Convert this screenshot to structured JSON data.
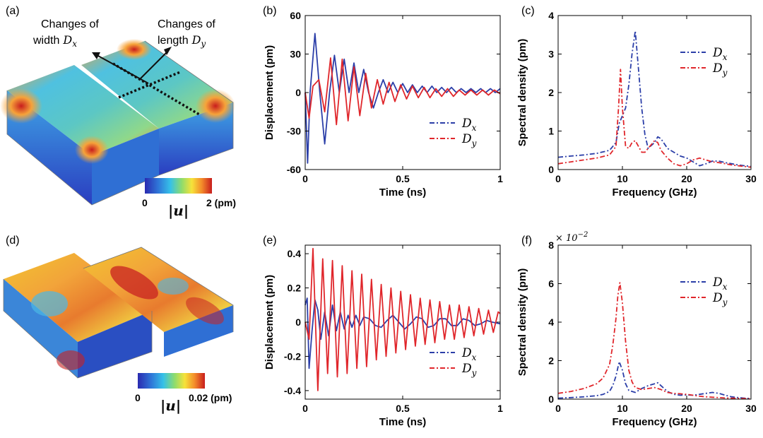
{
  "panel_labels": {
    "a": "(a)",
    "b": "(b)",
    "c": "(c)",
    "d": "(d)",
    "e": "(e)",
    "f": "(f)"
  },
  "annotations": {
    "width_line1": "Changes of",
    "width_line2": "width",
    "length_line1": "Changes of",
    "length_line2": "length",
    "dx_symbol": "D",
    "dx_sub": "x",
    "dy_symbol": "D",
    "dy_sub": "y"
  },
  "colorbar_a": {
    "min_label": "0",
    "max_label": "2 (pm)",
    "u_label": "|u|"
  },
  "colorbar_d": {
    "min_label": "0",
    "max_label": "0.02 (pm)",
    "u_label": "|u|"
  },
  "colors": {
    "dx": "#2b3ea8",
    "dy": "#e0262b"
  },
  "legend": {
    "dx_main": "D",
    "dx_sub": "x",
    "dy_main": "D",
    "dy_sub": "y"
  },
  "chart_data": [
    {
      "id": "b",
      "type": "line",
      "xlabel": "Time (ns)",
      "ylabel": "Displacement (pm)",
      "xlim": [
        0,
        1
      ],
      "ylim": [
        -60,
        60
      ],
      "xticks": [
        0,
        0.5,
        1
      ],
      "xticklabels": [
        "0",
        "0.5",
        "1"
      ],
      "yticks": [
        -60,
        -30,
        0,
        30,
        60
      ],
      "yticklabels": [
        "-60",
        "-30",
        "0",
        "30",
        "60"
      ],
      "legend_position": "lower-right",
      "series": [
        {
          "key": "dx",
          "x": [
            0,
            0.0125,
            0.025,
            0.05,
            0.075,
            0.1,
            0.125,
            0.15,
            0.175,
            0.2,
            0.225,
            0.25,
            0.275,
            0.3,
            0.325,
            0.35,
            0.375,
            0.4,
            0.425,
            0.45,
            0.475,
            0.5,
            0.525,
            0.55,
            0.575,
            0.6,
            0.625,
            0.65,
            0.675,
            0.7,
            0.725,
            0.75,
            0.775,
            0.8,
            0.825,
            0.85,
            0.875,
            0.9,
            0.925,
            0.95,
            0.975,
            1.0
          ],
          "y": [
            0,
            -55,
            0,
            46,
            0,
            -40,
            0,
            29,
            0,
            26,
            0,
            23,
            0,
            18,
            0,
            -12,
            0,
            10,
            0,
            8,
            0,
            7,
            0,
            6,
            0,
            5,
            0,
            5,
            0,
            4,
            0,
            4,
            0,
            3,
            0,
            3,
            0,
            3,
            0,
            3,
            0,
            3
          ]
        },
        {
          "key": "dy",
          "x": [
            0,
            0.02,
            0.04,
            0.07,
            0.1,
            0.13,
            0.16,
            0.19,
            0.22,
            0.25,
            0.28,
            0.31,
            0.34,
            0.37,
            0.4,
            0.43,
            0.46,
            0.49,
            0.52,
            0.55,
            0.58,
            0.61,
            0.64,
            0.67,
            0.7,
            0.73,
            0.76,
            0.79,
            0.82,
            0.85,
            0.88,
            0.91,
            0.94,
            0.97,
            1.0
          ],
          "y": [
            0,
            -20,
            5,
            10,
            -15,
            27,
            -25,
            26,
            -22,
            20,
            -18,
            15,
            -12,
            10,
            -9,
            8,
            -7,
            6,
            -5,
            5,
            -4,
            4,
            -4,
            3,
            -3,
            3,
            -3,
            2,
            -2,
            2,
            -2,
            2,
            -2,
            2,
            -1
          ]
        }
      ]
    },
    {
      "id": "c",
      "type": "line",
      "xlabel": "Frequency (GHz)",
      "ylabel": "Spectral density (pm)",
      "xlim": [
        0,
        30
      ],
      "ylim": [
        0,
        4
      ],
      "xticks": [
        0,
        10,
        20,
        30
      ],
      "xticklabels": [
        "0",
        "10",
        "20",
        "30"
      ],
      "yticks": [
        0,
        1,
        2,
        3,
        4
      ],
      "yticklabels": [
        "0",
        "1",
        "2",
        "3",
        "4"
      ],
      "legend_position": "upper-right",
      "series": [
        {
          "key": "dx",
          "x": [
            0,
            2,
            4,
            6,
            8,
            9,
            9.5,
            10,
            10.5,
            11,
            11.5,
            12,
            12.5,
            13,
            13.5,
            14,
            15,
            15.5,
            16,
            17,
            18,
            19,
            20,
            21,
            22,
            23,
            24,
            25,
            26,
            27,
            28,
            29,
            30
          ],
          "y": [
            0.32,
            0.35,
            0.38,
            0.42,
            0.5,
            0.7,
            1.2,
            1.4,
            1.6,
            2.2,
            3.0,
            3.6,
            2.6,
            1.6,
            0.9,
            0.55,
            0.7,
            0.85,
            0.8,
            0.55,
            0.45,
            0.35,
            0.3,
            0.2,
            0.1,
            0.15,
            0.22,
            0.22,
            0.18,
            0.15,
            0.12,
            0.1,
            0.08
          ]
        },
        {
          "key": "dy",
          "x": [
            0,
            2,
            4,
            6,
            8,
            9,
            9.4,
            9.7,
            10,
            10.5,
            11,
            11.5,
            12,
            12.5,
            13,
            13.5,
            14,
            14.5,
            15,
            15.5,
            16,
            17,
            18,
            19,
            20,
            21,
            22,
            23,
            24,
            25,
            26,
            27,
            28,
            29,
            30
          ],
          "y": [
            0.15,
            0.2,
            0.25,
            0.3,
            0.38,
            0.6,
            1.6,
            2.6,
            1.6,
            0.6,
            0.55,
            0.7,
            0.75,
            0.6,
            0.45,
            0.45,
            0.55,
            0.65,
            0.75,
            0.7,
            0.5,
            0.3,
            0.15,
            0.1,
            0.15,
            0.25,
            0.3,
            0.25,
            0.2,
            0.18,
            0.15,
            0.12,
            0.1,
            0.08,
            0.06
          ]
        }
      ]
    },
    {
      "id": "e",
      "type": "line",
      "xlabel": "Time (ns)",
      "ylabel": "Displacement (pm)",
      "xlim": [
        0,
        1
      ],
      "ylim": [
        -0.45,
        0.45
      ],
      "xticks": [
        0,
        0.5,
        1
      ],
      "xticklabels": [
        "0",
        "0.5",
        "1"
      ],
      "yticks": [
        -0.4,
        -0.2,
        0,
        0.2,
        0.4
      ],
      "yticklabels": [
        "-0.4",
        "-0.2",
        "0",
        "0.2",
        "0.4"
      ],
      "legend_position": "lower-right",
      "series": [
        {
          "key": "dx",
          "x": [
            0,
            0.01,
            0.02,
            0.035,
            0.05,
            0.065,
            0.08,
            0.1,
            0.12,
            0.14,
            0.16,
            0.18,
            0.2,
            0.22,
            0.24,
            0.26,
            0.28,
            0.3,
            0.33,
            0.36,
            0.39,
            0.42,
            0.45,
            0.48,
            0.51,
            0.54,
            0.57,
            0.6,
            0.63,
            0.66,
            0.69,
            0.72,
            0.75,
            0.78,
            0.81,
            0.84,
            0.87,
            0.9,
            0.93,
            0.96,
            1.0
          ],
          "y": [
            0.1,
            0.14,
            -0.27,
            -0.05,
            0.13,
            0.07,
            -0.1,
            0.06,
            -0.08,
            0.1,
            -0.05,
            0.06,
            -0.04,
            0.04,
            -0.03,
            0.04,
            -0.02,
            0.03,
            0.02,
            -0.02,
            -0.03,
            0.01,
            0.04,
            0.0,
            -0.04,
            -0.01,
            0.03,
            0.02,
            -0.03,
            -0.02,
            0.02,
            0.02,
            -0.02,
            -0.02,
            0.02,
            0.01,
            -0.02,
            -0.01,
            0.01,
            0.0,
            -0.01
          ]
        },
        {
          "key": "dy",
          "x": [
            0,
            0.02,
            0.04,
            0.065,
            0.09,
            0.115,
            0.14,
            0.165,
            0.19,
            0.215,
            0.24,
            0.265,
            0.29,
            0.315,
            0.34,
            0.365,
            0.39,
            0.415,
            0.44,
            0.465,
            0.49,
            0.515,
            0.54,
            0.565,
            0.59,
            0.615,
            0.64,
            0.665,
            0.69,
            0.715,
            0.74,
            0.765,
            0.79,
            0.815,
            0.84,
            0.865,
            0.89,
            0.915,
            0.94,
            0.965,
            0.99,
            1.0
          ],
          "y": [
            0.0,
            -0.1,
            0.43,
            -0.4,
            0.37,
            -0.3,
            0.36,
            -0.32,
            0.33,
            -0.3,
            0.3,
            -0.27,
            0.28,
            -0.26,
            0.25,
            -0.22,
            0.22,
            -0.2,
            0.2,
            -0.18,
            0.18,
            -0.16,
            0.16,
            -0.14,
            0.14,
            -0.13,
            0.13,
            -0.12,
            0.12,
            -0.1,
            0.1,
            -0.1,
            0.1,
            -0.09,
            0.09,
            -0.08,
            0.08,
            -0.07,
            0.07,
            -0.06,
            0.06,
            0.05
          ]
        }
      ]
    },
    {
      "id": "f",
      "type": "line",
      "xlabel": "Frequency (GHz)",
      "ylabel": "Spectral density (pm)",
      "xlim": [
        0,
        30
      ],
      "ylim": [
        0,
        8
      ],
      "xticks": [
        0,
        10,
        20,
        30
      ],
      "xticklabels": [
        "0",
        "10",
        "20",
        "30"
      ],
      "yticks": [
        0,
        2,
        4,
        6,
        8
      ],
      "yticklabels": [
        "0",
        "2",
        "4",
        "6",
        "8"
      ],
      "multiplier_label": "× 10",
      "multiplier_exp": "−2",
      "legend_position": "upper-right",
      "series": [
        {
          "key": "dx",
          "x": [
            0,
            2,
            4,
            6,
            7,
            8,
            8.5,
            9,
            9.5,
            10,
            10.5,
            11,
            12,
            13,
            14,
            15,
            15.5,
            16,
            17,
            18,
            19,
            20,
            21,
            22,
            23,
            24,
            25,
            26,
            27,
            28,
            29,
            30
          ],
          "y": [
            0.05,
            0.08,
            0.12,
            0.18,
            0.25,
            0.4,
            0.7,
            1.2,
            1.95,
            1.5,
            0.8,
            0.45,
            0.35,
            0.55,
            0.7,
            0.8,
            0.85,
            0.7,
            0.4,
            0.25,
            0.2,
            0.22,
            0.2,
            0.25,
            0.3,
            0.35,
            0.3,
            0.2,
            0.12,
            0.08,
            0.05,
            0.03
          ]
        },
        {
          "key": "dy",
          "x": [
            0,
            2,
            4,
            6,
            7,
            8,
            8.5,
            9,
            9.3,
            9.6,
            10,
            10.5,
            11,
            11.5,
            12,
            13,
            14,
            15,
            16,
            17,
            18,
            19,
            20,
            21,
            22,
            23,
            24,
            25,
            26,
            27,
            28,
            29,
            30
          ],
          "y": [
            0.3,
            0.4,
            0.55,
            0.8,
            1.1,
            1.8,
            2.8,
            4.2,
            5.4,
            6.05,
            5.0,
            3.0,
            1.5,
            0.9,
            0.6,
            0.5,
            0.55,
            0.6,
            0.5,
            0.35,
            0.3,
            0.28,
            0.25,
            0.2,
            0.15,
            0.12,
            0.1,
            0.08,
            0.06,
            0.05,
            0.04,
            0.03,
            0.02
          ]
        }
      ]
    }
  ]
}
